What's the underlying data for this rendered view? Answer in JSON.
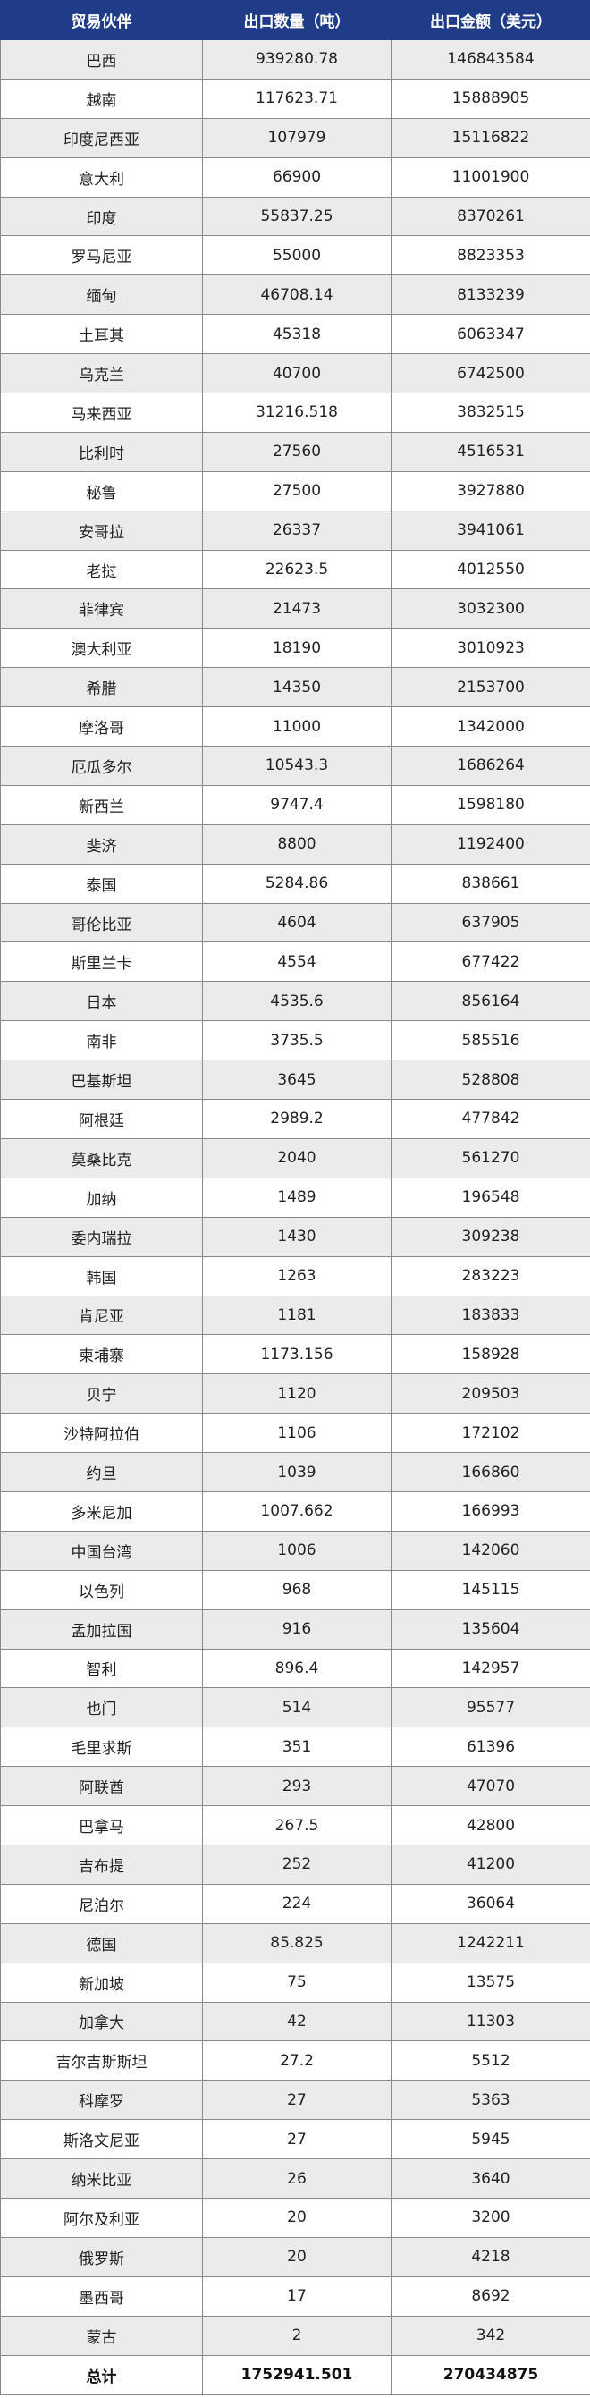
{
  "headers": [
    "贸易伙伴",
    "出口数量（吨）",
    "出口金额（美元）"
  ],
  "rows": [
    [
      "巴西",
      "939280.78",
      "146843584"
    ],
    [
      "越南",
      "117623.71",
      "15888905"
    ],
    [
      "印度尼西亚",
      "107979",
      "15116822"
    ],
    [
      "意大利",
      "66900",
      "11001900"
    ],
    [
      "印度",
      "55837.25",
      "8370261"
    ],
    [
      "罗马尼亚",
      "55000",
      "8823353"
    ],
    [
      "缅甸",
      "46708.14",
      "8133239"
    ],
    [
      "土耳其",
      "45318",
      "6063347"
    ],
    [
      "乌克兰",
      "40700",
      "6742500"
    ],
    [
      "马来西亚",
      "31216.518",
      "3832515"
    ],
    [
      "比利时",
      "27560",
      "4516531"
    ],
    [
      "秘鲁",
      "27500",
      "3927880"
    ],
    [
      "安哥拉",
      "26337",
      "3941061"
    ],
    [
      "老挝",
      "22623.5",
      "4012550"
    ],
    [
      "菲律宾",
      "21473",
      "3032300"
    ],
    [
      "澳大利亚",
      "18190",
      "3010923"
    ],
    [
      "希腊",
      "14350",
      "2153700"
    ],
    [
      "摩洛哥",
      "11000",
      "1342000"
    ],
    [
      "厄瓜多尔",
      "10543.3",
      "1686264"
    ],
    [
      "新西兰",
      "9747.4",
      "1598180"
    ],
    [
      "斐济",
      "8800",
      "1192400"
    ],
    [
      "泰国",
      "5284.86",
      "838661"
    ],
    [
      "哥伦比亚",
      "4604",
      "637905"
    ],
    [
      "斯里兰卡",
      "4554",
      "677422"
    ],
    [
      "日本",
      "4535.6",
      "856164"
    ],
    [
      "南非",
      "3735.5",
      "585516"
    ],
    [
      "巴基斯坦",
      "3645",
      "528808"
    ],
    [
      "阿根廷",
      "2989.2",
      "477842"
    ],
    [
      "莫桑比克",
      "2040",
      "561270"
    ],
    [
      "加纳",
      "1489",
      "196548"
    ],
    [
      "委内瑞拉",
      "1430",
      "309238"
    ],
    [
      "韩国",
      "1263",
      "283223"
    ],
    [
      "肯尼亚",
      "1181",
      "183833"
    ],
    [
      "柬埔寨",
      "1173.156",
      "158928"
    ],
    [
      "贝宁",
      "1120",
      "209503"
    ],
    [
      "沙特阿拉伯",
      "1106",
      "172102"
    ],
    [
      "约旦",
      "1039",
      "166860"
    ],
    [
      "多米尼加",
      "1007.662",
      "166993"
    ],
    [
      "中国台湾",
      "1006",
      "142060"
    ],
    [
      "以色列",
      "968",
      "145115"
    ],
    [
      "孟加拉国",
      "916",
      "135604"
    ],
    [
      "智利",
      "896.4",
      "142957"
    ],
    [
      "也门",
      "514",
      "95577"
    ],
    [
      "毛里求斯",
      "351",
      "61396"
    ],
    [
      "阿联酋",
      "293",
      "47070"
    ],
    [
      "巴拿马",
      "267.5",
      "42800"
    ],
    [
      "吉布提",
      "252",
      "41200"
    ],
    [
      "尼泊尔",
      "224",
      "36064"
    ],
    [
      "德国",
      "85.825",
      "1242211"
    ],
    [
      "新加坡",
      "75",
      "13575"
    ],
    [
      "加拿大",
      "42",
      "11303"
    ],
    [
      "吉尔吉斯斯坦",
      "27.2",
      "5512"
    ],
    [
      "科摩罗",
      "27",
      "5363"
    ],
    [
      "斯洛文尼亚",
      "27",
      "5945"
    ],
    [
      "纳米比亚",
      "26",
      "3640"
    ],
    [
      "阿尔及利亚",
      "20",
      "3200"
    ],
    [
      "俄罗斯",
      "20",
      "4218"
    ],
    [
      "墨西哥",
      "17",
      "8692"
    ],
    [
      "蒙古",
      "2",
      "342"
    ]
  ],
  "total": [
    "总计",
    "1752941.501",
    "270434875"
  ],
  "colors": {
    "header_bg": "#203c88",
    "header_text": "#ffffff",
    "stripe": "#ebebeb",
    "border": "#8a8a8a"
  }
}
